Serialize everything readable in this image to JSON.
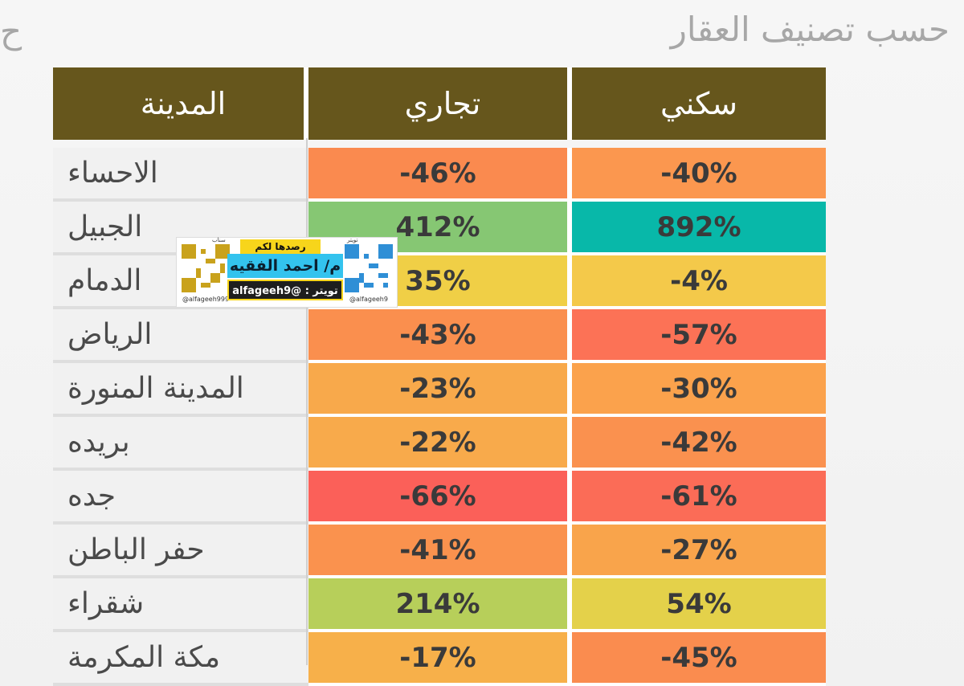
{
  "title": "حسب تصنيف العقار",
  "title_fragment": "ح",
  "headers": {
    "city": "المدينة",
    "commercial": "تجاري",
    "residential": "سكني"
  },
  "colors": {
    "header_bg": "#66561c"
  },
  "rows": [
    {
      "city": "الاحساء",
      "commercial": "-46%",
      "residential": "-40%",
      "commercial_color": "#fa8a4f",
      "residential_color": "#fb974f"
    },
    {
      "city": "الجبيل",
      "commercial": "412%",
      "residential": "892%",
      "commercial_color": "#86c773",
      "residential_color": "#08b8a9"
    },
    {
      "city": "الدمام",
      "commercial": "35%",
      "residential": "-4%",
      "commercial_color": "#f0cf46",
      "residential_color": "#f4c94a"
    },
    {
      "city": "الرياض",
      "commercial": "-43%",
      "residential": "-57%",
      "commercial_color": "#fa8f4e",
      "residential_color": "#fc7256"
    },
    {
      "city": "المدينة المنورة",
      "commercial": "-23%",
      "residential": "-30%",
      "commercial_color": "#f8a94b",
      "residential_color": "#fba24c"
    },
    {
      "city": "بريده",
      "commercial": "-22%",
      "residential": "-42%",
      "commercial_color": "#f8aa4b",
      "residential_color": "#fa914f"
    },
    {
      "city": "جده",
      "commercial": "-66%",
      "residential": "-61%",
      "commercial_color": "#fb6059",
      "residential_color": "#fb6c57"
    },
    {
      "city": "حفر الباطن",
      "commercial": "-41%",
      "residential": "-27%",
      "commercial_color": "#fa924e",
      "residential_color": "#f9a44b"
    },
    {
      "city": "شقراء",
      "commercial": "214%",
      "residential": "54%",
      "commercial_color": "#b7cf5a",
      "residential_color": "#e4d14a"
    },
    {
      "city": "مكة المكرمة",
      "commercial": "-17%",
      "residential": "-45%",
      "commercial_color": "#f7b04a",
      "residential_color": "#fa8c4f"
    }
  ],
  "watermark": {
    "tag": "رصدها لكم",
    "name": "م/ احمد الفقيه",
    "handle": "تويتر : @alfageeh9",
    "left_top_label": "سناب",
    "right_top_label": "تويتر",
    "left_caption": "@alfageeh999",
    "right_caption": "@alfageeh9",
    "logo_colors": [
      "#f7d51b",
      "#33c3ee",
      "#1e1e1e"
    ]
  }
}
